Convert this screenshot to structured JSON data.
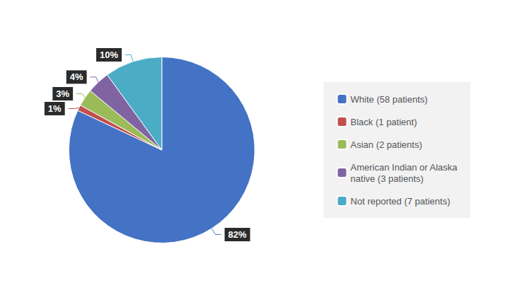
{
  "chart_data": {
    "type": "pie",
    "categories": [
      "White (58 patients)",
      "Black (1 patient)",
      "Asian (2 patients)",
      "American Indian or Alaska\nnative (3 patients)",
      "Not reported (7 patients)"
    ],
    "values": [
      82,
      1,
      3,
      4,
      10
    ],
    "value_labels": [
      "82%",
      "1%",
      "3%",
      "4%",
      "10%"
    ],
    "colors": [
      "#4472C4",
      "#C0504D",
      "#9BBB59",
      "#8064A2",
      "#4BACC6"
    ],
    "data_labels": true,
    "legend": "right"
  }
}
